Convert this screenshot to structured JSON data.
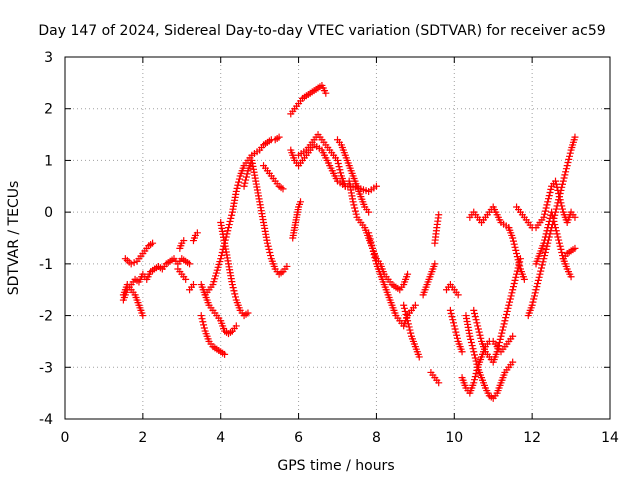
{
  "chart_data": {
    "type": "scatter",
    "title": "Day 147 of 2024, Sidereal Day-to-day VTEC variation (SDTVAR) for receiver ac59",
    "xlabel": "GPS time / hours",
    "ylabel": "SDTVAR / TECUs",
    "xlim": [
      0,
      14
    ],
    "ylim": [
      -4,
      3
    ],
    "xticks": [
      0,
      2,
      4,
      6,
      8,
      10,
      12,
      14
    ],
    "yticks": [
      -4,
      -3,
      -2,
      -1,
      0,
      1,
      2,
      3
    ],
    "grid": true,
    "marker": "+",
    "color": "#ff0000",
    "segments": [
      {
        "x": [
          1.55,
          1.7,
          1.85,
          2.0,
          2.15,
          2.25
        ],
        "y": [
          -0.9,
          -1.0,
          -0.95,
          -0.8,
          -0.65,
          -0.6
        ]
      },
      {
        "x": [
          1.5,
          1.6,
          1.7,
          1.8,
          1.9,
          2.0,
          2.1,
          2.2,
          2.3,
          2.4,
          2.5,
          2.6,
          2.7,
          2.8,
          2.9,
          3.0,
          3.1,
          3.2
        ],
        "y": [
          -1.7,
          -1.5,
          -1.4,
          -1.3,
          -1.35,
          -1.2,
          -1.3,
          -1.15,
          -1.1,
          -1.05,
          -1.1,
          -1.0,
          -0.95,
          -0.9,
          -1.0,
          -0.9,
          -0.95,
          -1.0
        ]
      },
      {
        "x": [
          1.5,
          1.6,
          1.7,
          1.8,
          1.9,
          2.0
        ],
        "y": [
          -1.6,
          -1.4,
          -1.5,
          -1.6,
          -1.8,
          -2.0
        ]
      },
      {
        "x": [
          2.9,
          3.0,
          3.1
        ],
        "y": [
          -1.1,
          -1.2,
          -1.3
        ]
      },
      {
        "x": [
          2.95,
          3.0,
          3.05
        ],
        "y": [
          -0.7,
          -0.6,
          -0.55
        ]
      },
      {
        "x": [
          3.2,
          3.25,
          3.3
        ],
        "y": [
          -1.5,
          -1.45,
          -1.4
        ]
      },
      {
        "x": [
          3.3,
          3.35,
          3.4
        ],
        "y": [
          -0.55,
          -0.45,
          -0.4
        ]
      },
      {
        "x": [
          3.5,
          3.6,
          3.7,
          3.8,
          3.9,
          4.0,
          4.1,
          4.2,
          4.3,
          4.4
        ],
        "y": [
          -1.4,
          -1.6,
          -1.8,
          -1.9,
          -2.0,
          -2.1,
          -2.3,
          -2.35,
          -2.3,
          -2.2
        ]
      },
      {
        "x": [
          3.5,
          3.6,
          3.7,
          3.8,
          3.9,
          4.0,
          4.1
        ],
        "y": [
          -2.0,
          -2.3,
          -2.5,
          -2.6,
          -2.65,
          -2.7,
          -2.75
        ]
      },
      {
        "x": [
          3.6,
          3.8,
          4.0,
          4.1,
          4.2,
          4.3,
          4.4,
          4.5,
          4.6,
          4.7,
          4.8,
          5.0,
          5.1,
          5.2,
          5.3,
          5.4,
          5.5
        ],
        "y": [
          -1.6,
          -1.4,
          -0.9,
          -0.6,
          -0.3,
          0.0,
          0.4,
          0.7,
          0.9,
          1.0,
          1.1,
          1.2,
          1.3,
          1.35,
          1.4,
          1.4,
          1.45
        ]
      },
      {
        "x": [
          4.0,
          4.1,
          4.2,
          4.3,
          4.4,
          4.5,
          4.6,
          4.7
        ],
        "y": [
          -0.2,
          -0.6,
          -1.0,
          -1.4,
          -1.7,
          -1.9,
          -2.0,
          -1.95
        ]
      },
      {
        "x": [
          4.6,
          4.7,
          4.8,
          4.9,
          5.0,
          5.1,
          5.2,
          5.3,
          5.4,
          5.5,
          5.6,
          5.7
        ],
        "y": [
          0.5,
          0.8,
          1.0,
          0.6,
          0.2,
          -0.2,
          -0.6,
          -0.9,
          -1.1,
          -1.2,
          -1.15,
          -1.05
        ]
      },
      {
        "x": [
          5.1,
          5.2,
          5.3,
          5.4,
          5.5,
          5.6
        ],
        "y": [
          0.9,
          0.8,
          0.7,
          0.6,
          0.5,
          0.45
        ]
      },
      {
        "x": [
          5.85,
          5.9,
          5.95,
          6.0,
          6.05
        ],
        "y": [
          -0.5,
          -0.3,
          -0.1,
          0.1,
          0.2
        ]
      },
      {
        "x": [
          5.8,
          5.9,
          6.0,
          6.1,
          6.2,
          6.3,
          6.4,
          6.5,
          6.6,
          6.7
        ],
        "y": [
          1.9,
          2.0,
          2.1,
          2.2,
          2.25,
          2.3,
          2.35,
          2.4,
          2.45,
          2.3
        ]
      },
      {
        "x": [
          5.8,
          5.9,
          6.0,
          6.2,
          6.4,
          6.6,
          6.8,
          7.0,
          7.2,
          7.4,
          7.6,
          7.8,
          8.0
        ],
        "y": [
          1.2,
          1.0,
          0.9,
          1.1,
          1.3,
          1.2,
          0.9,
          0.6,
          0.5,
          0.5,
          0.45,
          0.4,
          0.5
        ]
      },
      {
        "x": [
          6.0,
          6.2,
          6.4,
          6.5,
          6.6,
          6.8,
          7.0,
          7.1,
          7.2
        ],
        "y": [
          1.1,
          1.2,
          1.4,
          1.5,
          1.4,
          1.2,
          1.0,
          0.7,
          0.5
        ]
      },
      {
        "x": [
          7.0,
          7.1,
          7.2,
          7.3,
          7.4,
          7.5,
          7.6,
          7.7,
          7.8
        ],
        "y": [
          1.4,
          1.3,
          1.1,
          0.9,
          0.7,
          0.5,
          0.3,
          0.1,
          0.0
        ]
      },
      {
        "x": [
          7.3,
          7.4,
          7.5,
          7.6,
          7.7,
          7.8,
          7.9,
          8.0,
          8.1,
          8.2,
          8.3,
          8.4,
          8.5,
          8.6,
          8.7,
          8.8
        ],
        "y": [
          0.6,
          0.2,
          -0.1,
          -0.2,
          -0.3,
          -0.5,
          -0.7,
          -0.9,
          -1.0,
          -1.2,
          -1.3,
          -1.4,
          -1.45,
          -1.5,
          -1.4,
          -1.2
        ]
      },
      {
        "x": [
          7.8,
          7.9,
          8.0,
          8.1,
          8.2,
          8.3,
          8.4,
          8.5,
          8.6,
          8.7,
          8.8,
          8.9,
          9.0
        ],
        "y": [
          -0.4,
          -0.7,
          -1.0,
          -1.2,
          -1.4,
          -1.6,
          -1.8,
          -2.0,
          -2.1,
          -2.2,
          -2.0,
          -1.9,
          -1.8
        ]
      },
      {
        "x": [
          8.7,
          8.8,
          8.9,
          9.0,
          9.1
        ],
        "y": [
          -1.8,
          -2.1,
          -2.4,
          -2.6,
          -2.8
        ]
      },
      {
        "x": [
          9.2,
          9.3,
          9.4,
          9.5
        ],
        "y": [
          -1.6,
          -1.4,
          -1.2,
          -1.0
        ]
      },
      {
        "x": [
          9.5,
          9.55,
          9.6
        ],
        "y": [
          -0.6,
          -0.3,
          -0.05
        ]
      },
      {
        "x": [
          9.4,
          9.5,
          9.6
        ],
        "y": [
          -3.1,
          -3.2,
          -3.3
        ]
      },
      {
        "x": [
          9.8,
          9.9,
          10.0,
          10.1
        ],
        "y": [
          -1.5,
          -1.4,
          -1.5,
          -1.6
        ]
      },
      {
        "x": [
          9.9,
          10.0,
          10.1,
          10.2
        ],
        "y": [
          -1.9,
          -2.2,
          -2.5,
          -2.7
        ]
      },
      {
        "x": [
          10.2,
          10.3,
          10.4,
          10.5,
          10.6,
          10.7,
          10.8,
          10.9,
          11.0,
          11.1,
          11.2,
          11.3,
          11.4,
          11.5
        ],
        "y": [
          -3.2,
          -3.4,
          -3.5,
          -3.3,
          -3.0,
          -2.8,
          -2.6,
          -2.5,
          -2.5,
          -2.6,
          -2.7,
          -2.6,
          -2.5,
          -2.4
        ]
      },
      {
        "x": [
          10.3,
          10.4,
          10.5,
          10.6,
          10.7,
          10.8,
          10.9,
          11.0,
          11.1,
          11.2,
          11.3,
          11.4,
          11.5
        ],
        "y": [
          -2.0,
          -2.4,
          -2.7,
          -3.0,
          -3.2,
          -3.4,
          -3.55,
          -3.6,
          -3.5,
          -3.3,
          -3.1,
          -3.0,
          -2.9
        ]
      },
      {
        "x": [
          10.4,
          10.5,
          10.6,
          10.7,
          10.8,
          11.0,
          11.2,
          11.4
        ],
        "y": [
          -0.1,
          0.0,
          -0.1,
          -0.2,
          -0.1,
          0.1,
          -0.2,
          -0.3
        ]
      },
      {
        "x": [
          10.5,
          10.6,
          10.7,
          10.8,
          10.9,
          11.0,
          11.1,
          11.2,
          11.3,
          11.4,
          11.5,
          11.6,
          11.7
        ],
        "y": [
          -1.9,
          -2.2,
          -2.5,
          -2.7,
          -2.8,
          -2.9,
          -2.7,
          -2.4,
          -2.1,
          -1.8,
          -1.5,
          -1.2,
          -0.9
        ]
      },
      {
        "x": [
          11.4,
          11.5,
          11.6,
          11.7,
          11.8
        ],
        "y": [
          -0.3,
          -0.5,
          -0.8,
          -1.1,
          -1.3
        ]
      },
      {
        "x": [
          11.6,
          11.7,
          11.8,
          11.9,
          12.0
        ],
        "y": [
          0.1,
          0.0,
          -0.1,
          -0.2,
          -0.3
        ]
      },
      {
        "x": [
          11.9,
          12.0,
          12.1,
          12.2,
          12.3,
          12.4,
          12.5,
          12.6,
          12.7,
          12.8,
          12.9,
          13.0,
          13.1
        ],
        "y": [
          -2.0,
          -1.8,
          -1.5,
          -1.2,
          -0.9,
          -0.6,
          -0.3,
          0.0,
          0.3,
          0.6,
          0.9,
          1.2,
          1.45
        ]
      },
      {
        "x": [
          12.1,
          12.2,
          12.3,
          12.4,
          12.5,
          12.6,
          12.7,
          12.8,
          12.9,
          13.0
        ],
        "y": [
          -1.0,
          -0.8,
          -0.6,
          -0.3,
          0.0,
          -0.3,
          -0.6,
          -0.9,
          -1.1,
          -1.25
        ]
      },
      {
        "x": [
          12.1,
          12.2,
          12.3,
          12.4,
          12.5,
          12.6,
          12.7,
          12.8,
          12.9,
          13.0,
          13.1
        ],
        "y": [
          -0.3,
          -0.2,
          -0.1,
          0.2,
          0.5,
          0.6,
          0.3,
          0.0,
          -0.2,
          0.0,
          -0.1
        ]
      },
      {
        "x": [
          12.8,
          12.9,
          13.0,
          13.1
        ],
        "y": [
          -0.9,
          -0.8,
          -0.75,
          -0.7
        ]
      }
    ]
  }
}
